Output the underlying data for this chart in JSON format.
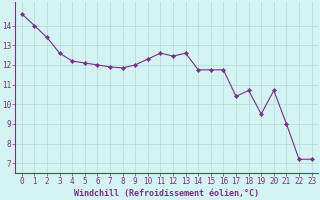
{
  "x": [
    0,
    1,
    2,
    3,
    4,
    5,
    6,
    7,
    8,
    9,
    10,
    11,
    12,
    13,
    14,
    15,
    16,
    17,
    18,
    19,
    20,
    21,
    22,
    23
  ],
  "y": [
    14.6,
    14.0,
    13.4,
    12.6,
    12.2,
    12.1,
    12.0,
    11.9,
    11.85,
    12.0,
    12.3,
    12.6,
    12.45,
    12.6,
    11.75,
    11.75,
    11.75,
    10.4,
    10.7,
    9.5,
    10.7,
    9.0,
    7.2,
    7.2
  ],
  "line_color": "#7B2D8B",
  "marker": "D",
  "marker_size": 2.2,
  "background_color": "#d4f4f4",
  "grid_color": "#b0d8d8",
  "xlabel": "Windchill (Refroidissement éolien,°C)",
  "xlabel_color": "#7B2D8B",
  "xlabel_fontsize": 6.0,
  "xtick_labels": [
    "0",
    "1",
    "2",
    "3",
    "4",
    "5",
    "6",
    "7",
    "8",
    "9",
    "10",
    "11",
    "12",
    "13",
    "14",
    "15",
    "16",
    "17",
    "18",
    "19",
    "20",
    "21",
    "22",
    "23"
  ],
  "ytick_labels": [
    "7",
    "8",
    "9",
    "10",
    "11",
    "12",
    "13",
    "14"
  ],
  "ytick_vals": [
    7,
    8,
    9,
    10,
    11,
    12,
    13,
    14
  ],
  "ylim": [
    6.5,
    15.2
  ],
  "xlim": [
    -0.5,
    23.5
  ],
  "tick_color": "#7B2D8B",
  "tick_fontsize": 5.5,
  "spine_color": "#7B2D8B"
}
